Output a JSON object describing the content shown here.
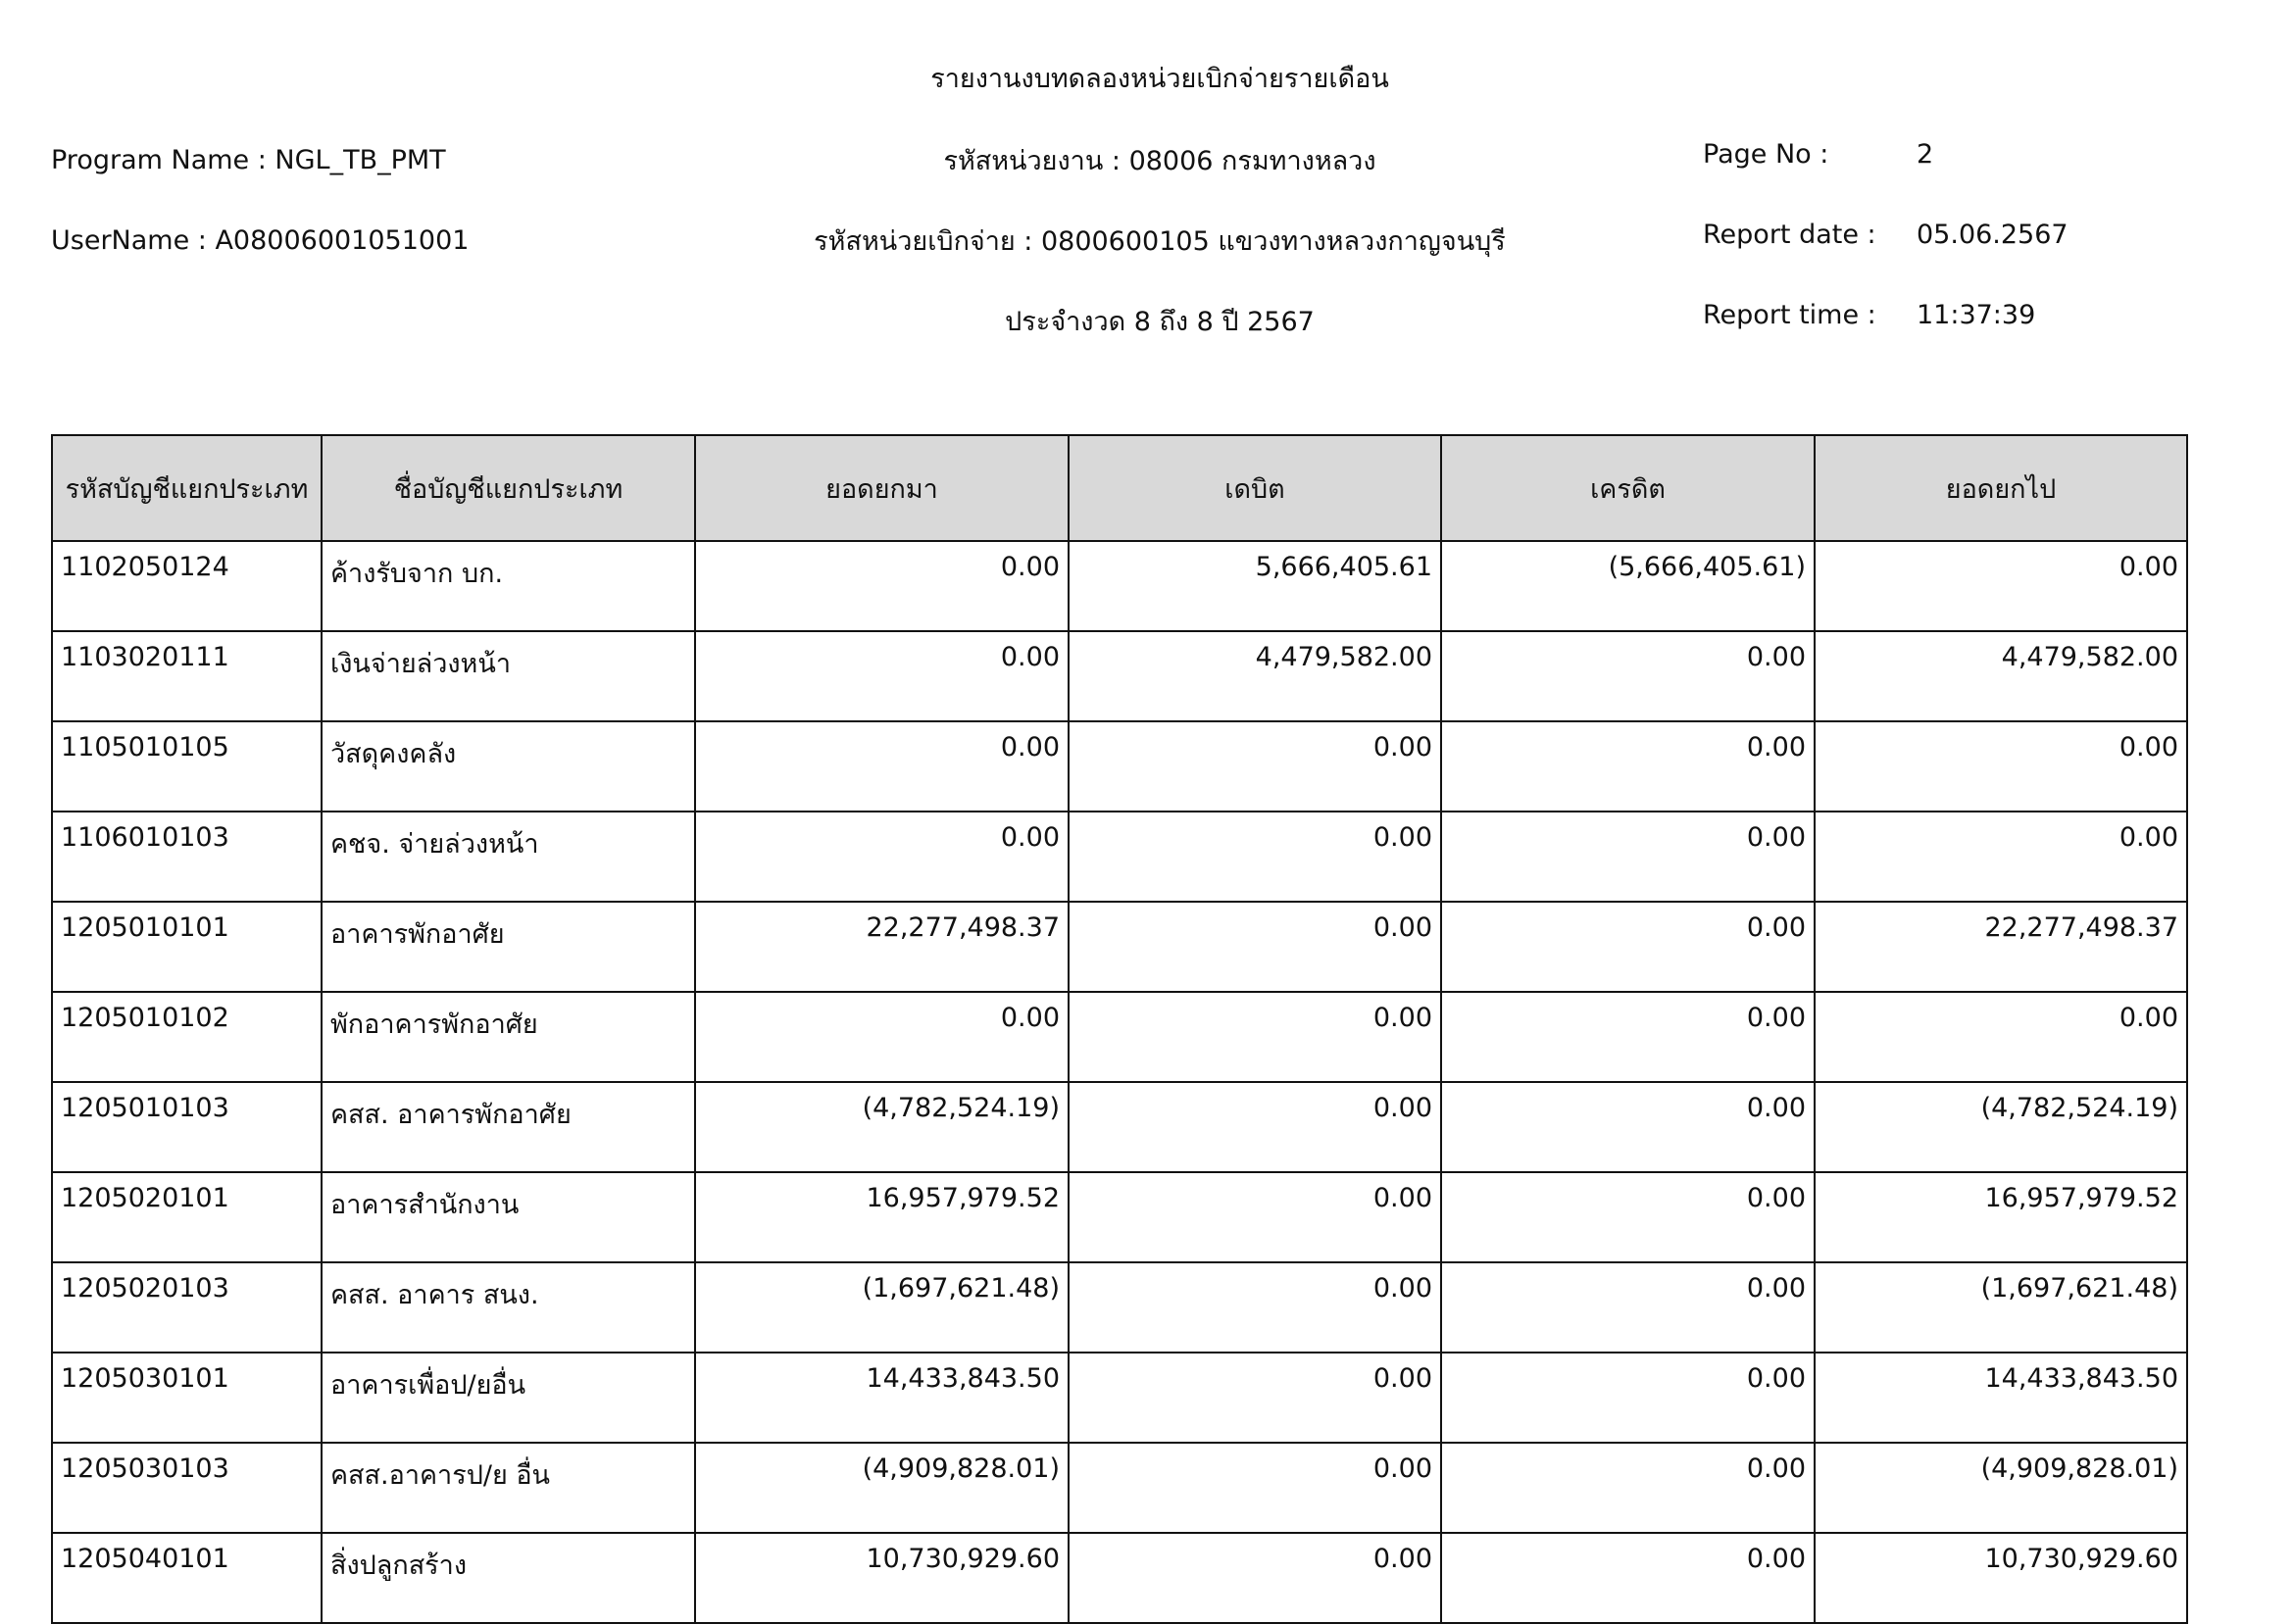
{
  "report": {
    "title": "รายงานงบทดลองหน่วยเบิกจ่ายรายเดือน",
    "program_name": "Program Name : NGL_TB_PMT",
    "user_name": "UserName : A08006001051001",
    "agency": "รหัสหน่วยงาน : 08006 กรมทางหลวง",
    "disbursing_unit": "รหัสหน่วยเบิกจ่าย : 0800600105 แขวงทางหลวงกาญจนบุรี",
    "period": "ประจำงวด 8 ถึง 8 ปี 2567",
    "page_no_label": "Page No :",
    "page_no": "2",
    "report_date_label": "Report date :",
    "report_date": "05.06.2567",
    "report_time_label": "Report time :",
    "report_time": "11:37:39"
  },
  "table": {
    "headers": [
      "รหัสบัญชีแยกประเภท",
      "ชื่อบัญชีแยกประเภท",
      "ยอดยกมา",
      "เดบิต",
      "เครดิต",
      "ยอดยกไป"
    ],
    "rows": [
      [
        "1102050124",
        "ค้างรับจาก บก.",
        "0.00",
        "5,666,405.61",
        "(5,666,405.61)",
        "0.00"
      ],
      [
        "1103020111",
        "เงินจ่ายล่วงหน้า",
        "0.00",
        "4,479,582.00",
        "0.00",
        "4,479,582.00"
      ],
      [
        "1105010105",
        "วัสดุคงคลัง",
        "0.00",
        "0.00",
        "0.00",
        "0.00"
      ],
      [
        "1106010103",
        "คชจ. จ่ายล่วงหน้า",
        "0.00",
        "0.00",
        "0.00",
        "0.00"
      ],
      [
        "1205010101",
        "อาคารพักอาศัย",
        "22,277,498.37",
        "0.00",
        "0.00",
        "22,277,498.37"
      ],
      [
        "1205010102",
        "พักอาคารพักอาศัย",
        "0.00",
        "0.00",
        "0.00",
        "0.00"
      ],
      [
        "1205010103",
        "คสส. อาคารพักอาศัย",
        "(4,782,524.19)",
        "0.00",
        "0.00",
        "(4,782,524.19)"
      ],
      [
        "1205020101",
        "อาคารสำนักงาน",
        "16,957,979.52",
        "0.00",
        "0.00",
        "16,957,979.52"
      ],
      [
        "1205020103",
        "คสส. อาคาร สนง.",
        "(1,697,621.48)",
        "0.00",
        "0.00",
        "(1,697,621.48)"
      ],
      [
        "1205030101",
        "อาคารเพื่อป/ยอื่น",
        "14,433,843.50",
        "0.00",
        "0.00",
        "14,433,843.50"
      ],
      [
        "1205030103",
        "คสส.อาคารป/ย อื่น",
        "(4,909,828.01)",
        "0.00",
        "0.00",
        "(4,909,828.01)"
      ],
      [
        "1205040101",
        "สิ่งปลูกสร้าง",
        "10,730,929.60",
        "0.00",
        "0.00",
        "10,730,929.60"
      ]
    ]
  },
  "colors": {
    "header_bg": "#d9d9d9",
    "border": "#111111"
  }
}
